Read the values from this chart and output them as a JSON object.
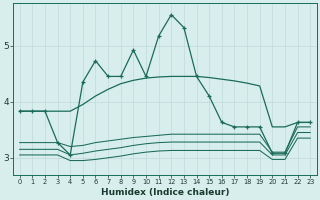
{
  "xlabel": "Humidex (Indice chaleur)",
  "background_color": "#d8eeec",
  "grid_color": "#c0dada",
  "line_color": "#1a6b5a",
  "xlim": [
    -0.5,
    23.5
  ],
  "ylim": [
    2.7,
    5.75
  ],
  "yticks": [
    3,
    4,
    5
  ],
  "xticks": [
    0,
    1,
    2,
    3,
    4,
    5,
    6,
    7,
    8,
    9,
    10,
    11,
    12,
    13,
    14,
    15,
    16,
    17,
    18,
    19,
    20,
    21,
    22,
    23
  ],
  "line_main_x": [
    0,
    1,
    2,
    3,
    4,
    5,
    6,
    7,
    8,
    9,
    10,
    11,
    12,
    13,
    14,
    15,
    16,
    17,
    18,
    19,
    20,
    21,
    22,
    23
  ],
  "line_main_y": [
    3.83,
    3.83,
    3.83,
    3.27,
    3.05,
    4.35,
    4.73,
    4.45,
    4.45,
    4.92,
    4.45,
    5.17,
    5.55,
    5.32,
    4.45,
    4.1,
    3.63,
    3.55,
    3.55,
    3.55,
    3.08,
    3.08,
    3.63,
    3.63
  ],
  "line_upper_x": [
    0,
    1,
    2,
    3,
    4,
    5,
    6,
    7,
    8,
    9,
    10,
    11,
    12,
    13,
    14,
    15,
    16,
    17,
    18,
    19,
    20,
    21,
    22,
    23
  ],
  "line_upper_y": [
    3.83,
    3.83,
    3.83,
    3.83,
    3.83,
    3.95,
    4.1,
    4.22,
    4.32,
    4.38,
    4.42,
    4.44,
    4.45,
    4.45,
    4.45,
    4.43,
    4.4,
    4.37,
    4.33,
    4.28,
    3.55,
    3.55,
    3.63,
    3.63
  ],
  "line_mid_x": [
    0,
    1,
    2,
    3,
    4,
    5,
    6,
    7,
    8,
    9,
    10,
    11,
    12,
    13,
    14,
    15,
    16,
    17,
    18,
    19,
    20,
    21,
    22,
    23
  ],
  "line_mid_y": [
    3.27,
    3.27,
    3.27,
    3.27,
    3.2,
    3.22,
    3.27,
    3.3,
    3.33,
    3.36,
    3.38,
    3.4,
    3.42,
    3.42,
    3.42,
    3.42,
    3.42,
    3.42,
    3.42,
    3.42,
    3.1,
    3.1,
    3.55,
    3.55
  ],
  "line_low_x": [
    0,
    1,
    2,
    3,
    4,
    5,
    6,
    7,
    8,
    9,
    10,
    11,
    12,
    13,
    14,
    15,
    16,
    17,
    18,
    19,
    20,
    21,
    22,
    23
  ],
  "line_low_y": [
    3.15,
    3.15,
    3.15,
    3.15,
    3.05,
    3.08,
    3.12,
    3.15,
    3.18,
    3.22,
    3.25,
    3.27,
    3.28,
    3.28,
    3.28,
    3.28,
    3.28,
    3.28,
    3.28,
    3.28,
    3.05,
    3.05,
    3.45,
    3.45
  ],
  "line_flat_x": [
    0,
    1,
    2,
    3,
    4,
    5,
    6,
    7,
    8,
    9,
    10,
    11,
    12,
    13,
    14,
    15,
    16,
    17,
    18,
    19,
    20,
    21,
    22,
    23
  ],
  "line_flat_y": [
    3.05,
    3.05,
    3.05,
    3.05,
    2.95,
    2.95,
    2.97,
    3.0,
    3.03,
    3.07,
    3.1,
    3.12,
    3.13,
    3.13,
    3.13,
    3.13,
    3.13,
    3.13,
    3.13,
    3.13,
    2.97,
    2.97,
    3.35,
    3.35
  ]
}
